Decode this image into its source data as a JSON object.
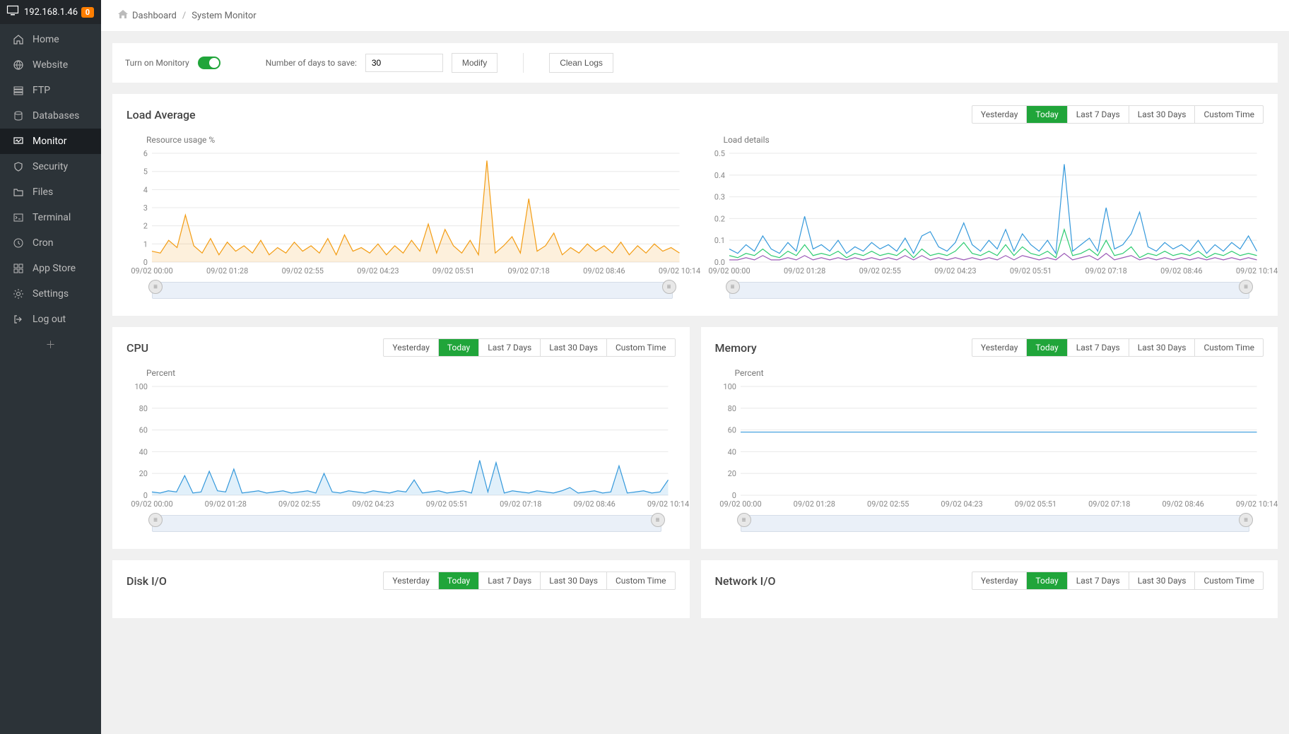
{
  "sidebar": {
    "ip": "192.168.1.46",
    "badge_count": "0",
    "items": [
      {
        "label": "Home",
        "icon": "home"
      },
      {
        "label": "Website",
        "icon": "globe"
      },
      {
        "label": "FTP",
        "icon": "ftp"
      },
      {
        "label": "Databases",
        "icon": "db"
      },
      {
        "label": "Monitor",
        "icon": "monitor",
        "active": true
      },
      {
        "label": "Security",
        "icon": "shield"
      },
      {
        "label": "Files",
        "icon": "folder"
      },
      {
        "label": "Terminal",
        "icon": "terminal"
      },
      {
        "label": "Cron",
        "icon": "cron"
      },
      {
        "label": "App Store",
        "icon": "apps"
      },
      {
        "label": "Settings",
        "icon": "settings"
      },
      {
        "label": "Log out",
        "icon": "logout"
      }
    ]
  },
  "breadcrumb": {
    "root": "Dashboard",
    "current": "System Monitor"
  },
  "controls": {
    "monitor_label": "Turn on Monitory",
    "days_label": "Number of days to save:",
    "days_value": "30",
    "modify_label": "Modify",
    "clean_logs_label": "Clean Logs"
  },
  "time_tabs": [
    "Yesterday",
    "Today",
    "Last 7 Days",
    "Last 30 Days",
    "Custom Time"
  ],
  "time_tabs_active": "Today",
  "charts": {
    "load_average": {
      "title": "Load Average",
      "left": {
        "subtitle": "Resource usage %",
        "ylim": [
          0,
          6
        ],
        "ytick_step": 1,
        "x_labels": [
          "09/02 00:00",
          "09/02 01:28",
          "09/02 02:55",
          "09/02 04:23",
          "09/02 05:51",
          "09/02 07:18",
          "09/02 08:46",
          "09/02 10:14"
        ],
        "color": "#f39c12",
        "series": [
          0.6,
          0.5,
          1.2,
          0.8,
          2.6,
          0.9,
          0.5,
          1.3,
          0.4,
          1.1,
          0.6,
          0.9,
          0.5,
          1.2,
          0.4,
          0.8,
          0.5,
          1.1,
          0.6,
          0.9,
          0.5,
          1.3,
          0.4,
          1.5,
          0.6,
          0.8,
          0.5,
          1.0,
          0.4,
          0.9,
          0.5,
          1.2,
          0.6,
          2.1,
          0.5,
          1.8,
          0.9,
          0.5,
          1.2,
          0.4,
          5.6,
          0.5,
          0.9,
          1.4,
          0.5,
          3.5,
          0.6,
          0.9,
          1.6,
          0.4,
          0.8,
          0.5,
          1.0,
          0.6,
          0.9,
          0.5,
          1.1,
          0.4,
          0.9,
          0.5,
          1.0,
          0.6,
          0.8,
          0.5
        ]
      },
      "right": {
        "subtitle": "Load details",
        "ylim": [
          0,
          0.5
        ],
        "ytick_step": 0.1,
        "x_labels": [
          "09/02 00:00",
          "09/02 01:28",
          "09/02 02:55",
          "09/02 04:23",
          "09/02 05:51",
          "09/02 07:18",
          "09/02 08:46",
          "09/02 10:14"
        ],
        "colors": {
          "blue": "#3398db",
          "green": "#2ecc71",
          "purple": "#9b59b6"
        },
        "series_blue": [
          0.06,
          0.04,
          0.08,
          0.05,
          0.12,
          0.06,
          0.04,
          0.09,
          0.05,
          0.21,
          0.06,
          0.08,
          0.05,
          0.1,
          0.04,
          0.07,
          0.05,
          0.09,
          0.06,
          0.08,
          0.05,
          0.11,
          0.04,
          0.12,
          0.14,
          0.07,
          0.05,
          0.09,
          0.18,
          0.08,
          0.05,
          0.1,
          0.06,
          0.15,
          0.05,
          0.13,
          0.08,
          0.05,
          0.1,
          0.04,
          0.45,
          0.05,
          0.08,
          0.11,
          0.05,
          0.25,
          0.06,
          0.08,
          0.13,
          0.23,
          0.07,
          0.05,
          0.09,
          0.06,
          0.08,
          0.05,
          0.1,
          0.04,
          0.08,
          0.05,
          0.09,
          0.06,
          0.12,
          0.05
        ],
        "series_green": [
          0.03,
          0.02,
          0.04,
          0.03,
          0.06,
          0.03,
          0.02,
          0.05,
          0.03,
          0.08,
          0.03,
          0.04,
          0.03,
          0.05,
          0.02,
          0.04,
          0.03,
          0.05,
          0.03,
          0.04,
          0.03,
          0.06,
          0.02,
          0.06,
          0.03,
          0.04,
          0.03,
          0.05,
          0.09,
          0.04,
          0.03,
          0.05,
          0.03,
          0.08,
          0.03,
          0.07,
          0.04,
          0.03,
          0.05,
          0.02,
          0.15,
          0.03,
          0.04,
          0.06,
          0.03,
          0.1,
          0.03,
          0.04,
          0.07,
          0.02,
          0.04,
          0.03,
          0.05,
          0.03,
          0.04,
          0.03,
          0.05,
          0.02,
          0.04,
          0.03,
          0.05,
          0.03,
          0.04,
          0.03
        ],
        "series_purple": [
          0.01,
          0.01,
          0.02,
          0.01,
          0.03,
          0.01,
          0.01,
          0.02,
          0.01,
          0.03,
          0.01,
          0.02,
          0.01,
          0.02,
          0.01,
          0.02,
          0.01,
          0.02,
          0.01,
          0.02,
          0.01,
          0.03,
          0.01,
          0.03,
          0.01,
          0.02,
          0.01,
          0.02,
          0.01,
          0.02,
          0.01,
          0.02,
          0.01,
          0.03,
          0.01,
          0.03,
          0.02,
          0.01,
          0.02,
          0.01,
          0.04,
          0.01,
          0.02,
          0.03,
          0.01,
          0.04,
          0.01,
          0.02,
          0.03,
          0.01,
          0.02,
          0.01,
          0.02,
          0.01,
          0.02,
          0.01,
          0.02,
          0.01,
          0.02,
          0.01,
          0.02,
          0.01,
          0.02,
          0.01
        ]
      }
    },
    "cpu": {
      "title": "CPU",
      "subtitle": "Percent",
      "ylim": [
        0,
        100
      ],
      "ytick_step": 20,
      "x_labels": [
        "09/02 00:00",
        "09/02 01:28",
        "09/02 02:55",
        "09/02 04:23",
        "09/02 05:51",
        "09/02 07:18",
        "09/02 08:46",
        "09/02 10:14"
      ],
      "color": "#3398db",
      "series": [
        3,
        2,
        4,
        3,
        18,
        2,
        3,
        22,
        4,
        3,
        24,
        2,
        3,
        4,
        2,
        3,
        4,
        2,
        3,
        4,
        2,
        20,
        3,
        2,
        4,
        3,
        2,
        4,
        3,
        2,
        4,
        3,
        14,
        2,
        3,
        4,
        2,
        3,
        4,
        2,
        32,
        3,
        30,
        2,
        4,
        3,
        2,
        4,
        3,
        2,
        4,
        7,
        2,
        3,
        4,
        2,
        3,
        27,
        2,
        3,
        4,
        2,
        3,
        14
      ]
    },
    "memory": {
      "title": "Memory",
      "subtitle": "Percent",
      "ylim": [
        0,
        100
      ],
      "ytick_step": 20,
      "x_labels": [
        "09/02 00:00",
        "09/02 01:28",
        "09/02 02:55",
        "09/02 04:23",
        "09/02 05:51",
        "09/02 07:18",
        "09/02 08:46",
        "09/02 10:14"
      ],
      "color": "#3398db",
      "series": [
        58,
        58,
        58,
        58,
        58,
        58,
        58,
        58,
        58,
        58,
        58,
        58,
        58,
        58,
        58,
        58,
        58,
        58,
        58,
        58,
        58,
        58,
        58,
        58,
        58,
        58,
        58,
        58,
        58,
        58,
        58,
        58,
        58,
        58,
        58,
        58,
        58,
        58,
        58,
        58,
        58,
        58,
        58,
        58,
        58,
        58,
        58,
        58,
        58,
        58,
        58,
        58,
        58,
        58,
        58,
        58,
        58,
        58,
        58,
        58,
        58,
        58,
        58,
        58
      ]
    },
    "disk_io": {
      "title": "Disk I/O"
    },
    "net_io": {
      "title": "Network I/O"
    }
  }
}
